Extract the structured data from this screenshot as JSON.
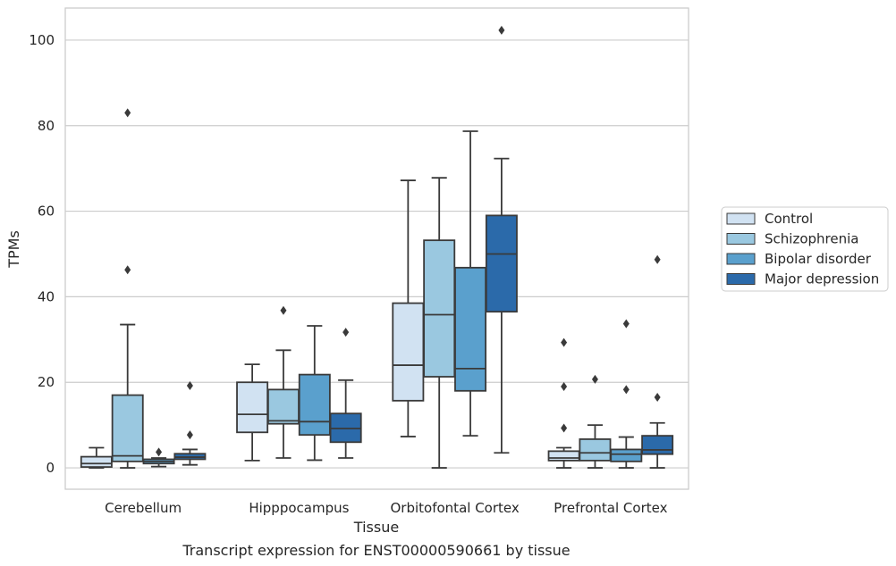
{
  "chart_data": {
    "type": "boxplot",
    "title": "",
    "caption": "Transcript expression for ENST00000590661 by tissue",
    "xlabel": "Tissue",
    "ylabel": "TPMs",
    "ylim": [
      -5,
      107.5
    ],
    "yticks": [
      0,
      20,
      40,
      60,
      80,
      100
    ],
    "grid": "horizontal",
    "legend_position": "right",
    "categories": [
      "Cerebellum",
      "Hipppocampus",
      "Orbitofontal Cortex",
      "Prefrontal Cortex"
    ],
    "series": [
      {
        "name": "Control",
        "color": "#d1e2f2",
        "boxes": [
          {
            "whislo": 0,
            "q1": 0.2,
            "med": 1.0,
            "q3": 2.6,
            "whishi": 4.7,
            "fliers": []
          },
          {
            "whislo": 1.7,
            "q1": 8.3,
            "med": 12.5,
            "q3": 20.0,
            "whishi": 24.2,
            "fliers": []
          },
          {
            "whislo": 7.3,
            "q1": 15.7,
            "med": 24.0,
            "q3": 38.5,
            "whishi": 67.2,
            "fliers": []
          },
          {
            "whislo": 0,
            "q1": 1.7,
            "med": 2.3,
            "q3": 3.9,
            "whishi": 4.7,
            "fliers": [
              9.3,
              19.0,
              29.3
            ]
          }
        ]
      },
      {
        "name": "Schizophrenia",
        "color": "#9ac8e0",
        "boxes": [
          {
            "whislo": 0,
            "q1": 1.5,
            "med": 2.8,
            "q3": 17.0,
            "whishi": 33.5,
            "fliers": [
              46.3,
              83.0
            ]
          },
          {
            "whislo": 2.3,
            "q1": 10.3,
            "med": 11.0,
            "q3": 18.3,
            "whishi": 27.5,
            "fliers": [
              36.8
            ]
          },
          {
            "whislo": 0,
            "q1": 21.3,
            "med": 35.8,
            "q3": 53.2,
            "whishi": 67.8,
            "fliers": []
          },
          {
            "whislo": 0,
            "q1": 1.7,
            "med": 3.5,
            "q3": 6.7,
            "whishi": 10.0,
            "fliers": [
              20.7
            ]
          }
        ]
      },
      {
        "name": "Bipolar disorder",
        "color": "#5aa0cd",
        "boxes": [
          {
            "whislo": 0.3,
            "q1": 1.0,
            "med": 1.5,
            "q3": 2.0,
            "whishi": 2.3,
            "fliers": [
              3.7
            ]
          },
          {
            "whislo": 1.8,
            "q1": 7.7,
            "med": 10.8,
            "q3": 21.8,
            "whishi": 33.2,
            "fliers": []
          },
          {
            "whislo": 7.5,
            "q1": 18.0,
            "med": 23.2,
            "q3": 46.8,
            "whishi": 78.7,
            "fliers": []
          },
          {
            "whislo": 0,
            "q1": 1.5,
            "med": 3.2,
            "q3": 4.3,
            "whishi": 7.2,
            "fliers": [
              18.3,
              33.7
            ]
          }
        ]
      },
      {
        "name": "Major depression",
        "color": "#2b6aaa",
        "boxes": [
          {
            "whislo": 0.7,
            "q1": 2.0,
            "med": 2.5,
            "q3": 3.3,
            "whishi": 4.3,
            "fliers": [
              7.7,
              19.2
            ]
          },
          {
            "whislo": 2.3,
            "q1": 6.0,
            "med": 9.2,
            "q3": 12.7,
            "whishi": 20.5,
            "fliers": [
              31.7
            ]
          },
          {
            "whislo": 3.5,
            "q1": 36.5,
            "med": 50.0,
            "q3": 59.0,
            "whishi": 72.3,
            "fliers": [
              102.3
            ]
          },
          {
            "whislo": 0,
            "q1": 3.2,
            "med": 4.2,
            "q3": 7.5,
            "whishi": 10.5,
            "fliers": [
              16.5,
              48.7
            ]
          }
        ]
      }
    ]
  },
  "style": {
    "grid_color": "#cccccc",
    "frame_color": "#cccccc",
    "line_color": "#3a3a3a"
  }
}
